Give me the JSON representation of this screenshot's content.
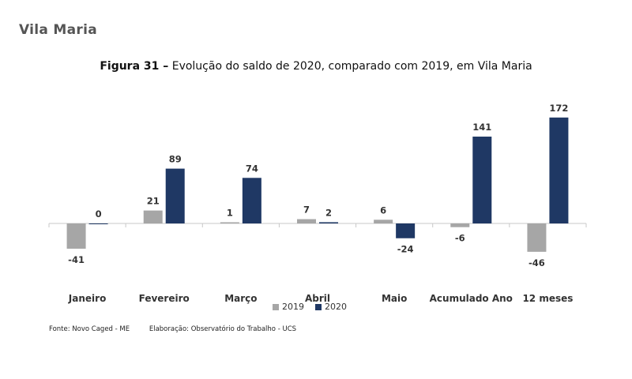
{
  "section_title": "Vila Maria",
  "figure": {
    "label": "Figura 31 –",
    "title": "Evolução do saldo de 2020, comparado com 2019, em Vila Maria"
  },
  "chart_data": {
    "type": "bar",
    "categories": [
      "Janeiro",
      "Fevereiro",
      "Março",
      "Abril",
      "Maio",
      "Acumulado Ano",
      "12 meses"
    ],
    "series": [
      {
        "name": "2019",
        "color": "#a6a6a6",
        "values": [
          -41,
          21,
          1,
          7,
          6,
          -6,
          -46
        ]
      },
      {
        "name": "2020",
        "color": "#1f3864",
        "values": [
          0,
          89,
          74,
          2,
          -24,
          141,
          172
        ]
      }
    ],
    "legend_position": "bottom",
    "grid": false
  },
  "footer": {
    "source": "Fonte: Novo Caged - ME",
    "elaboration": "Elaboração: Observatório do Trabalho - UCS"
  }
}
